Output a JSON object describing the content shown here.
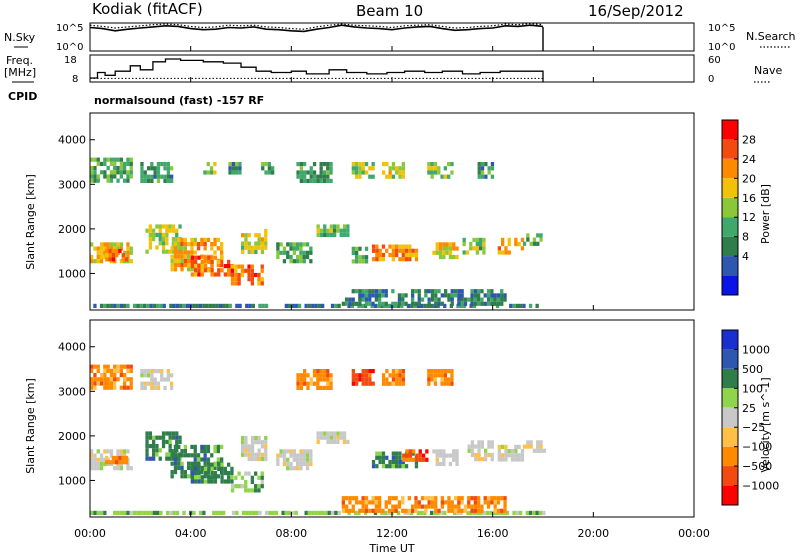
{
  "header": {
    "station": "Kodiak (fitACF)",
    "beam": "Beam 10",
    "date": "16/Sep/2012"
  },
  "left_labels": {
    "nsky": "N.Sky",
    "freq_line1": "Freq.",
    "freq_line2": "[MHz]",
    "cpid": "CPID"
  },
  "right_labels": {
    "nsearch": "N.Search",
    "nave": "Nave"
  },
  "noise_panel": {
    "left_ticks": [
      "10^5",
      "10^0"
    ],
    "right_ticks": [
      "10^5",
      "10^0"
    ]
  },
  "freq_panel": {
    "left_ticks": [
      "18",
      "8"
    ],
    "right_ticks": [
      "60",
      "0"
    ]
  },
  "cpid_text": "normalsound (fast) -157 RF",
  "x_axis": {
    "label": "Time UT",
    "ticks": [
      "00:00",
      "04:00",
      "08:00",
      "12:00",
      "16:00",
      "20:00",
      "00:00"
    ],
    "range_hours": [
      0,
      24
    ]
  },
  "colors": {
    "power_scale": [
      "#0a14e6",
      "#2e58b0",
      "#2f7d4a",
      "#3fa86a",
      "#8ac83a",
      "#f2c20a",
      "#ff8a00",
      "#f24a10",
      "#ff0000"
    ],
    "velocity_scale": [
      "#ff0000",
      "#f24a10",
      "#ff8a00",
      "#ffc04a",
      "#c8c8c8",
      "#8fd44a",
      "#2f7d4a",
      "#2e58b0",
      "#1a2fd0"
    ]
  },
  "chart_data": [
    {
      "type": "line",
      "name": "noise",
      "x_range_hours": [
        0,
        24
      ],
      "series": [
        {
          "name": "N.Sky",
          "x": [
            0.0,
            0.5,
            1.0,
            1.5,
            2.0,
            2.5,
            3.0,
            3.5,
            4.0,
            4.5,
            5.0,
            5.5,
            6.0,
            6.5,
            7.0,
            7.5,
            8.0,
            8.5,
            9.0,
            9.5,
            10.0,
            10.5,
            11.0,
            11.5,
            12.0,
            12.5,
            13.0,
            13.5,
            14.0,
            14.5,
            15.0,
            15.5,
            16.0,
            16.5,
            17.0,
            17.5,
            18.0
          ],
          "y": [
            4.2,
            4.0,
            3.6,
            3.9,
            4.1,
            4.3,
            4.5,
            4.4,
            4.0,
            3.8,
            3.9,
            4.2,
            4.1,
            4.3,
            3.9,
            3.8,
            3.6,
            3.5,
            3.9,
            4.2,
            4.6,
            4.3,
            4.1,
            4.0,
            3.8,
            4.1,
            4.3,
            4.4,
            4.0,
            3.7,
            3.8,
            4.0,
            4.1,
            4.5,
            4.4,
            4.6,
            4.4
          ]
        },
        {
          "name": "N.Search",
          "x": [
            0.0,
            0.5,
            1.0,
            1.5,
            2.0,
            2.5,
            3.0,
            3.5,
            4.0,
            4.5,
            5.0,
            5.5,
            6.0,
            6.5,
            7.0,
            7.5,
            8.0,
            8.5,
            9.0,
            9.5,
            10.0,
            10.5,
            11.0,
            11.5,
            12.0,
            12.5,
            13.0,
            13.5,
            14.0,
            14.5,
            15.0,
            15.5,
            16.0,
            16.5,
            17.0,
            17.5,
            18.0
          ],
          "y": [
            4.6,
            4.4,
            4.1,
            4.3,
            4.5,
            4.7,
            4.8,
            4.7,
            4.4,
            4.2,
            4.3,
            4.6,
            4.5,
            4.6,
            4.3,
            4.2,
            4.0,
            3.9,
            4.3,
            4.6,
            4.8,
            4.6,
            4.5,
            4.4,
            4.2,
            4.5,
            4.6,
            4.7,
            4.4,
            4.1,
            4.2,
            4.4,
            4.5,
            4.8,
            4.7,
            4.9,
            4.7
          ]
        }
      ],
      "ylim": [
        0,
        5
      ]
    },
    {
      "type": "line",
      "name": "frequency",
      "x_range_hours": [
        0,
        24
      ],
      "series": [
        {
          "name": "Freq.",
          "x": [
            0.0,
            0.3,
            0.6,
            1.0,
            1.6,
            2.0,
            2.5,
            3.0,
            3.6,
            4.5,
            5.3,
            6.0,
            6.6,
            7.2,
            8.0,
            8.6,
            9.5,
            10.2,
            11.0,
            11.8,
            12.5,
            13.3,
            14.0,
            14.8,
            15.5,
            16.3,
            17.0,
            18.0
          ],
          "y": [
            9.5,
            11.5,
            10.5,
            12.0,
            14.0,
            12.5,
            15.5,
            16.5,
            16.0,
            15.5,
            15.0,
            13.5,
            12.0,
            11.5,
            12.0,
            11.0,
            12.5,
            11.5,
            11.0,
            11.5,
            12.0,
            11.5,
            12.0,
            11.0,
            11.5,
            12.0,
            12.0,
            12.0
          ]
        },
        {
          "name": "Nave",
          "x": [
            0.0,
            3.0,
            6.0,
            9.0,
            12.0,
            15.0,
            18.0
          ],
          "y": [
            4,
            4,
            4,
            4,
            4,
            4,
            4
          ]
        }
      ],
      "ylim": [
        8,
        18
      ]
    },
    {
      "type": "heatmap",
      "name": "power",
      "xlabel": "Time UT",
      "ylabel": "Slant Range [km]",
      "yticks": [
        1000,
        2000,
        3000,
        4000
      ],
      "ylim": [
        180,
        4600
      ],
      "colorbar_label": "Power [dB]",
      "colorbar_ticks": [
        4,
        8,
        12,
        16,
        20,
        24,
        28
      ],
      "colorbar_range": [
        0,
        32
      ],
      "blobs": [
        {
          "t0": 0.0,
          "t1": 18.0,
          "r0": 250,
          "r1": 320,
          "value": 10
        },
        {
          "t0": 0.0,
          "t1": 1.6,
          "r0": 1250,
          "r1": 1700,
          "value": 22
        },
        {
          "t0": 0.6,
          "t1": 1.5,
          "r0": 1350,
          "r1": 1550,
          "value": 28
        },
        {
          "t0": 2.2,
          "t1": 3.6,
          "r0": 1500,
          "r1": 2100,
          "value": 18
        },
        {
          "t0": 3.2,
          "t1": 5.2,
          "r0": 1100,
          "r1": 1800,
          "value": 24
        },
        {
          "t0": 4.0,
          "t1": 5.6,
          "r0": 1000,
          "r1": 1400,
          "value": 28
        },
        {
          "t0": 5.6,
          "t1": 6.8,
          "r0": 750,
          "r1": 1200,
          "value": 28
        },
        {
          "t0": 6.0,
          "t1": 7.0,
          "r0": 1500,
          "r1": 2000,
          "value": 20
        },
        {
          "t0": 7.4,
          "t1": 8.8,
          "r0": 1300,
          "r1": 1700,
          "value": 14
        },
        {
          "t0": 9.0,
          "t1": 10.2,
          "r0": 1900,
          "r1": 2100,
          "value": 16
        },
        {
          "t0": 10.4,
          "t1": 11.0,
          "r0": 1300,
          "r1": 1600,
          "value": 14
        },
        {
          "t0": 11.2,
          "t1": 13.0,
          "r0": 1350,
          "r1": 1650,
          "value": 26
        },
        {
          "t0": 13.6,
          "t1": 14.6,
          "r0": 1400,
          "r1": 1700,
          "value": 22
        },
        {
          "t0": 14.8,
          "t1": 15.6,
          "r0": 1500,
          "r1": 1800,
          "value": 16
        },
        {
          "t0": 16.2,
          "t1": 17.2,
          "r0": 1500,
          "r1": 1800,
          "value": 26
        },
        {
          "t0": 17.2,
          "t1": 18.0,
          "r0": 1650,
          "r1": 1900,
          "value": 14
        },
        {
          "t0": 0.0,
          "t1": 1.7,
          "r0": 3100,
          "r1": 3600,
          "value": 14
        },
        {
          "t0": 2.0,
          "t1": 3.2,
          "r0": 3100,
          "r1": 3500,
          "value": 12
        },
        {
          "t0": 4.5,
          "t1": 5.0,
          "r0": 3300,
          "r1": 3500,
          "value": 18
        },
        {
          "t0": 5.5,
          "t1": 6.0,
          "r0": 3300,
          "r1": 3500,
          "value": 12
        },
        {
          "t0": 6.8,
          "t1": 7.2,
          "r0": 3300,
          "r1": 3500,
          "value": 14
        },
        {
          "t0": 8.2,
          "t1": 9.6,
          "r0": 3100,
          "r1": 3500,
          "value": 12
        },
        {
          "t0": 10.4,
          "t1": 11.2,
          "r0": 3200,
          "r1": 3500,
          "value": 18
        },
        {
          "t0": 11.6,
          "t1": 12.4,
          "r0": 3200,
          "r1": 3500,
          "value": 20
        },
        {
          "t0": 13.4,
          "t1": 14.4,
          "r0": 3200,
          "r1": 3500,
          "value": 18
        },
        {
          "t0": 15.4,
          "t1": 16.0,
          "r0": 3200,
          "r1": 3500,
          "value": 12
        },
        {
          "t0": 10.0,
          "t1": 16.5,
          "r0": 300,
          "r1": 650,
          "value": 10
        }
      ]
    },
    {
      "type": "heatmap",
      "name": "velocity",
      "xlabel": "Time UT",
      "ylabel": "Slant Range [km]",
      "yticks": [
        1000,
        2000,
        3000,
        4000
      ],
      "ylim": [
        180,
        4600
      ],
      "colorbar_label": "Velocity [m s^-1]",
      "colorbar_ticks": [
        "1000",
        "500",
        "100",
        "25",
        "−25",
        "−100",
        "−500",
        "−1000"
      ],
      "blobs": [
        {
          "t0": 0.0,
          "t1": 18.0,
          "r0": 250,
          "r1": 320,
          "value": 100
        },
        {
          "t0": 0.0,
          "t1": 1.6,
          "r0": 1250,
          "r1": 1700,
          "value": 25
        },
        {
          "t0": 0.6,
          "t1": 1.5,
          "r0": 1400,
          "r1": 1550,
          "value": -100
        },
        {
          "t0": 2.2,
          "t1": 3.6,
          "r0": 1500,
          "r1": 2100,
          "value": 500
        },
        {
          "t0": 3.2,
          "t1": 5.2,
          "r0": 1100,
          "r1": 1800,
          "value": 500
        },
        {
          "t0": 4.0,
          "t1": 5.6,
          "r0": 1000,
          "r1": 1400,
          "value": 500
        },
        {
          "t0": 5.6,
          "t1": 6.8,
          "r0": 750,
          "r1": 1200,
          "value": 100
        },
        {
          "t0": 6.0,
          "t1": 7.0,
          "r0": 1500,
          "r1": 2000,
          "value": 25
        },
        {
          "t0": 7.4,
          "t1": 8.8,
          "r0": 1300,
          "r1": 1700,
          "value": 25
        },
        {
          "t0": 9.0,
          "t1": 10.2,
          "r0": 1900,
          "r1": 2100,
          "value": 25
        },
        {
          "t0": 11.2,
          "t1": 13.0,
          "r0": 1350,
          "r1": 1650,
          "value": 500
        },
        {
          "t0": 12.4,
          "t1": 13.4,
          "r0": 1500,
          "r1": 1700,
          "value": -500
        },
        {
          "t0": 13.6,
          "t1": 14.6,
          "r0": 1400,
          "r1": 1700,
          "value": 25
        },
        {
          "t0": 15.0,
          "t1": 16.0,
          "r0": 1500,
          "r1": 1900,
          "value": 25
        },
        {
          "t0": 16.2,
          "t1": 17.2,
          "r0": 1500,
          "r1": 1800,
          "value": 25
        },
        {
          "t0": 17.2,
          "t1": 18.0,
          "r0": 1650,
          "r1": 1900,
          "value": 25
        },
        {
          "t0": 0.0,
          "t1": 1.7,
          "r0": 3100,
          "r1": 3600,
          "value": -100
        },
        {
          "t0": 2.0,
          "t1": 3.2,
          "r0": 3100,
          "r1": 3500,
          "value": 25
        },
        {
          "t0": 8.2,
          "t1": 9.6,
          "r0": 3100,
          "r1": 3500,
          "value": -100
        },
        {
          "t0": 10.4,
          "t1": 11.2,
          "r0": 3200,
          "r1": 3500,
          "value": -500
        },
        {
          "t0": 11.6,
          "t1": 12.4,
          "r0": 3200,
          "r1": 3500,
          "value": -100
        },
        {
          "t0": 13.4,
          "t1": 14.4,
          "r0": 3200,
          "r1": 3500,
          "value": -100
        },
        {
          "t0": 10.0,
          "t1": 16.5,
          "r0": 300,
          "r1": 650,
          "value": -100
        }
      ]
    }
  ]
}
